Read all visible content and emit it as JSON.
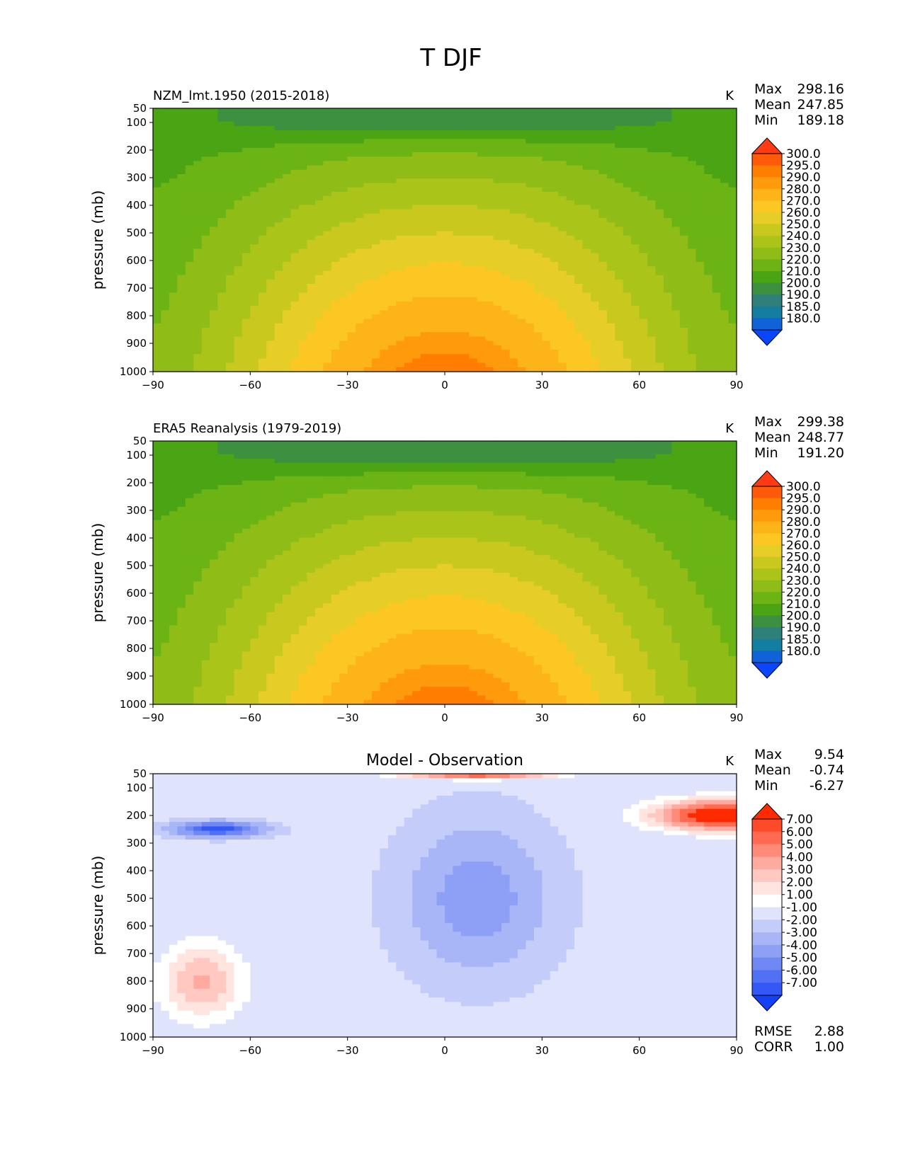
{
  "figure_title": "T DJF",
  "chart_data": [
    {
      "type": "heatmap",
      "title": "NZM_lmt.1950 (2015-2018)",
      "units": "K",
      "ylabel": "pressure (mb)",
      "xlabel": "",
      "x_ticks": [
        -90,
        -60,
        -30,
        0,
        30,
        60,
        90
      ],
      "x_tick_labels": [
        "−90",
        "−60",
        "−30",
        "0",
        "30",
        "60",
        "90"
      ],
      "y_ticks": [
        50,
        100,
        200,
        300,
        400,
        500,
        600,
        700,
        800,
        900,
        1000
      ],
      "y_tick_labels": [
        "50",
        "100",
        "200",
        "300",
        "400",
        "500",
        "600",
        "700",
        "800",
        "900",
        "1000"
      ],
      "xlim": [
        -90,
        90
      ],
      "ylim": [
        1000,
        50
      ],
      "stats": [
        {
          "label": "Max",
          "value": "298.16"
        },
        {
          "label": "Mean",
          "value": "247.85"
        },
        {
          "label": "Min",
          "value": "189.18"
        }
      ],
      "colorbar": {
        "labels": [
          "300.0",
          "295.0",
          "290.0",
          "280.0",
          "270.0",
          "260.0",
          "250.0",
          "240.0",
          "230.0",
          "220.0",
          "210.0",
          "200.0",
          "190.0",
          "185.0",
          "180.0"
        ],
        "colors": [
          "#ff3a14",
          "#ff5a0a",
          "#ff7d00",
          "#ff9a0c",
          "#fcb418",
          "#fcc722",
          "#e6cd28",
          "#c8c81e",
          "#aac41a",
          "#8fbc16",
          "#6bb414",
          "#4aa414",
          "#3c9040",
          "#2f8078",
          "#137ea0",
          "#0f62d8",
          "#0a46ff"
        ]
      },
      "field": {
        "model": "base",
        "min": 189.18,
        "max": 298.16
      }
    },
    {
      "type": "heatmap",
      "title": "ERA5 Reanalysis (1979-2019)",
      "units": "K",
      "ylabel": "pressure (mb)",
      "xlabel": "",
      "x_ticks": [
        -90,
        -60,
        -30,
        0,
        30,
        60,
        90
      ],
      "x_tick_labels": [
        "−90",
        "−60",
        "−30",
        "0",
        "30",
        "60",
        "90"
      ],
      "y_ticks": [
        50,
        100,
        200,
        300,
        400,
        500,
        600,
        700,
        800,
        900,
        1000
      ],
      "y_tick_labels": [
        "50",
        "100",
        "200",
        "300",
        "400",
        "500",
        "600",
        "700",
        "800",
        "900",
        "1000"
      ],
      "xlim": [
        -90,
        90
      ],
      "ylim": [
        1000,
        50
      ],
      "stats": [
        {
          "label": "Max",
          "value": "299.38"
        },
        {
          "label": "Mean",
          "value": "248.77"
        },
        {
          "label": "Min",
          "value": "191.20"
        }
      ],
      "colorbar": {
        "labels": [
          "300.0",
          "295.0",
          "290.0",
          "280.0",
          "270.0",
          "260.0",
          "250.0",
          "240.0",
          "230.0",
          "220.0",
          "210.0",
          "200.0",
          "190.0",
          "185.0",
          "180.0"
        ],
        "colors": [
          "#ff3a14",
          "#ff5a0a",
          "#ff7d00",
          "#ff9a0c",
          "#fcb418",
          "#fcc722",
          "#e6cd28",
          "#c8c81e",
          "#aac41a",
          "#8fbc16",
          "#6bb414",
          "#4aa414",
          "#3c9040",
          "#2f8078",
          "#137ea0",
          "#0f62d8",
          "#0a46ff"
        ]
      },
      "field": {
        "model": "base",
        "min": 191.2,
        "max": 299.38
      }
    },
    {
      "type": "heatmap",
      "title": "Model - Observation",
      "units": "K",
      "ylabel": "pressure (mb)",
      "xlabel": "",
      "x_ticks": [
        -90,
        -60,
        -30,
        0,
        30,
        60,
        90
      ],
      "x_tick_labels": [
        "−90",
        "−60",
        "−30",
        "0",
        "30",
        "60",
        "90"
      ],
      "y_ticks": [
        50,
        100,
        200,
        300,
        400,
        500,
        600,
        700,
        800,
        900,
        1000
      ],
      "y_tick_labels": [
        "50",
        "100",
        "200",
        "300",
        "400",
        "500",
        "600",
        "700",
        "800",
        "900",
        "1000"
      ],
      "xlim": [
        -90,
        90
      ],
      "ylim": [
        1000,
        50
      ],
      "stats": [
        {
          "label": "Max",
          "value": "9.54"
        },
        {
          "label": "Mean",
          "value": "-0.74"
        },
        {
          "label": "Min",
          "value": "-6.27"
        }
      ],
      "extra_stats": [
        {
          "label": "RMSE",
          "value": "2.88"
        },
        {
          "label": "CORR",
          "value": "1.00"
        }
      ],
      "colorbar": {
        "labels": [
          "7.00",
          "6.00",
          "5.00",
          "4.00",
          "3.00",
          "2.00",
          "1.00",
          "-1.00",
          "-2.00",
          "-3.00",
          "-4.00",
          "-5.00",
          "-6.00",
          "-7.00"
        ],
        "colors": [
          "#ff2a00",
          "#ff4a2a",
          "#ff6a50",
          "#ff8a78",
          "#ffaaa0",
          "#ffc8c0",
          "#ffe4e0",
          "#ffffff",
          "#dfe4fc",
          "#c4ccfa",
          "#a8b6f8",
          "#8ea0f6",
          "#7088f4",
          "#5270f4",
          "#3458f6",
          "#1640f8"
        ]
      },
      "field": {
        "model": "diff",
        "min": -6.27,
        "max": 9.54
      }
    }
  ]
}
